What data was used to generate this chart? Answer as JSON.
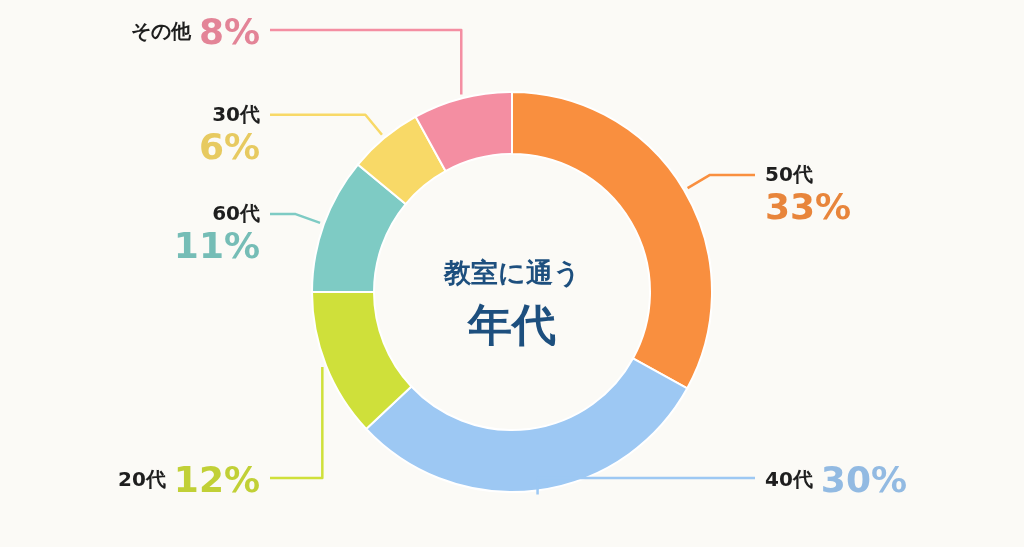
{
  "chart_data": {
    "type": "donut",
    "title": "教室に通う",
    "subtitle": "年代",
    "categories": [
      "50代",
      "40代",
      "20代",
      "60代",
      "30代",
      "その他"
    ],
    "values": [
      33,
      30,
      12,
      11,
      6,
      8
    ],
    "value_labels": [
      "33%",
      "30%",
      "12%",
      "11%",
      "6%",
      "8%"
    ],
    "colors": [
      "#f98f3f",
      "#9dc8f3",
      "#cfe03a",
      "#7ecbc4",
      "#f8d967",
      "#f48ea2"
    ],
    "legend": false
  }
}
